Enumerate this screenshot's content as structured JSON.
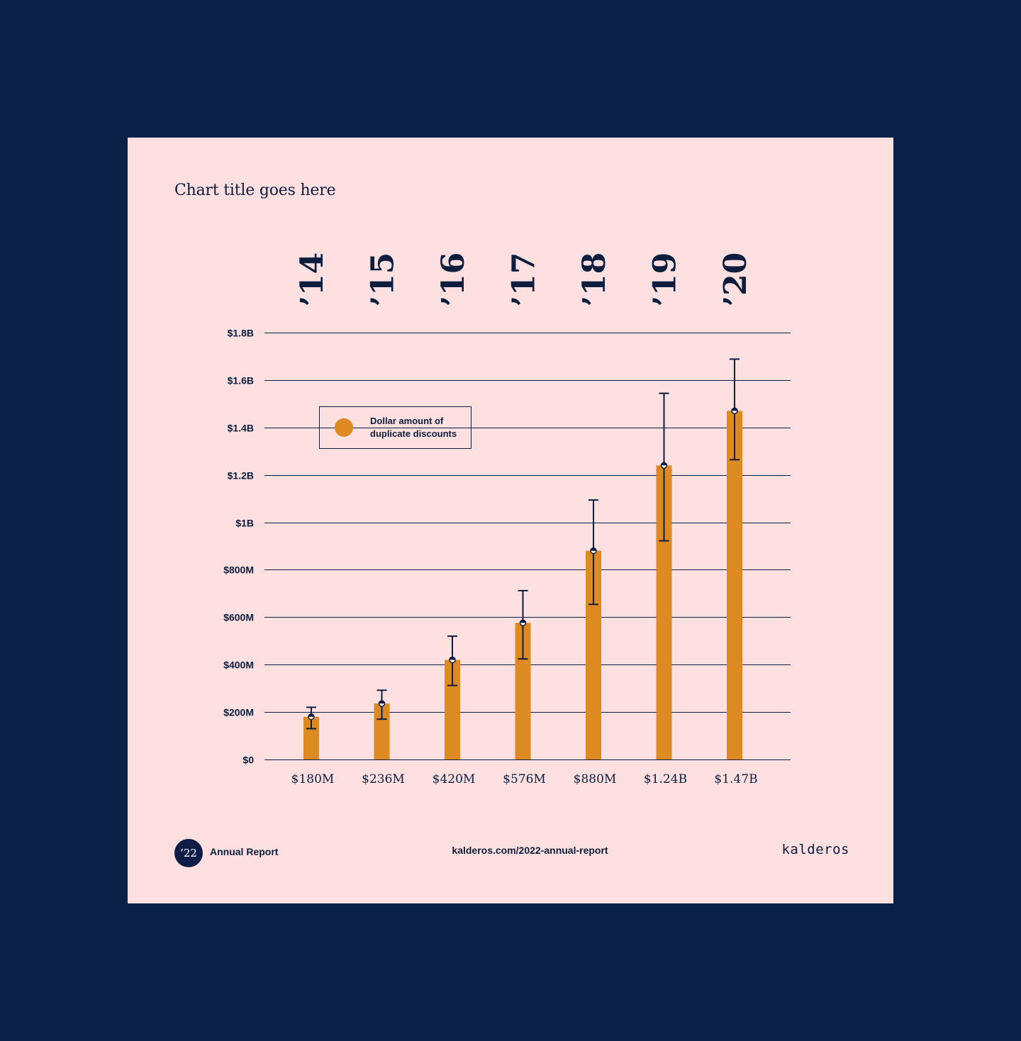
{
  "header": {
    "title": "Chart title goes here"
  },
  "footer": {
    "badge": "’22",
    "label": "Annual Report",
    "url": "kalderos.com/2022-annual-report",
    "brand": "kalderos"
  },
  "colors": {
    "page_background": "#0a2046",
    "card_background": "#fde0df",
    "bar": "#de8a22",
    "ink": "#0d1d3d"
  },
  "chart_data": {
    "type": "bar",
    "title": "Chart title goes here",
    "xlabel": "",
    "ylabel": "",
    "ylim": [
      0,
      1800000000
    ],
    "grid": true,
    "legend_position": "upper-left",
    "categories": [
      "’14",
      "’15",
      "’16",
      "’17",
      "’18",
      "’19",
      "’20"
    ],
    "bar_labels": [
      "$180M",
      "$236M",
      "$420M",
      "$576M",
      "$880M",
      "$1.24B",
      "$1.47B"
    ],
    "y_ticks": [
      {
        "value": 0,
        "label": "$0"
      },
      {
        "value": 200000000,
        "label": "$200M"
      },
      {
        "value": 400000000,
        "label": "$400M"
      },
      {
        "value": 600000000,
        "label": "$600M"
      },
      {
        "value": 800000000,
        "label": "$800M"
      },
      {
        "value": 1000000000,
        "label": "$1B"
      },
      {
        "value": 1200000000,
        "label": "$1.2B"
      },
      {
        "value": 1400000000,
        "label": "$1.4B"
      },
      {
        "value": 1600000000,
        "label": "$1.6B"
      },
      {
        "value": 1800000000,
        "label": "$1.8B"
      }
    ],
    "series": [
      {
        "name": "Dollar amount of duplicate discounts",
        "color": "#de8a22",
        "values": [
          180000000,
          236000000,
          420000000,
          576000000,
          880000000,
          1240000000,
          1470000000
        ],
        "error_high": [
          220000000,
          292000000,
          520000000,
          712000000,
          1094000000,
          1544000000,
          1688000000
        ],
        "error_low": [
          130000000,
          170000000,
          312000000,
          424000000,
          654000000,
          922000000,
          1264000000
        ]
      }
    ],
    "legend": {
      "line1": "Dollar amount of",
      "line2": "duplicate discounts"
    }
  }
}
